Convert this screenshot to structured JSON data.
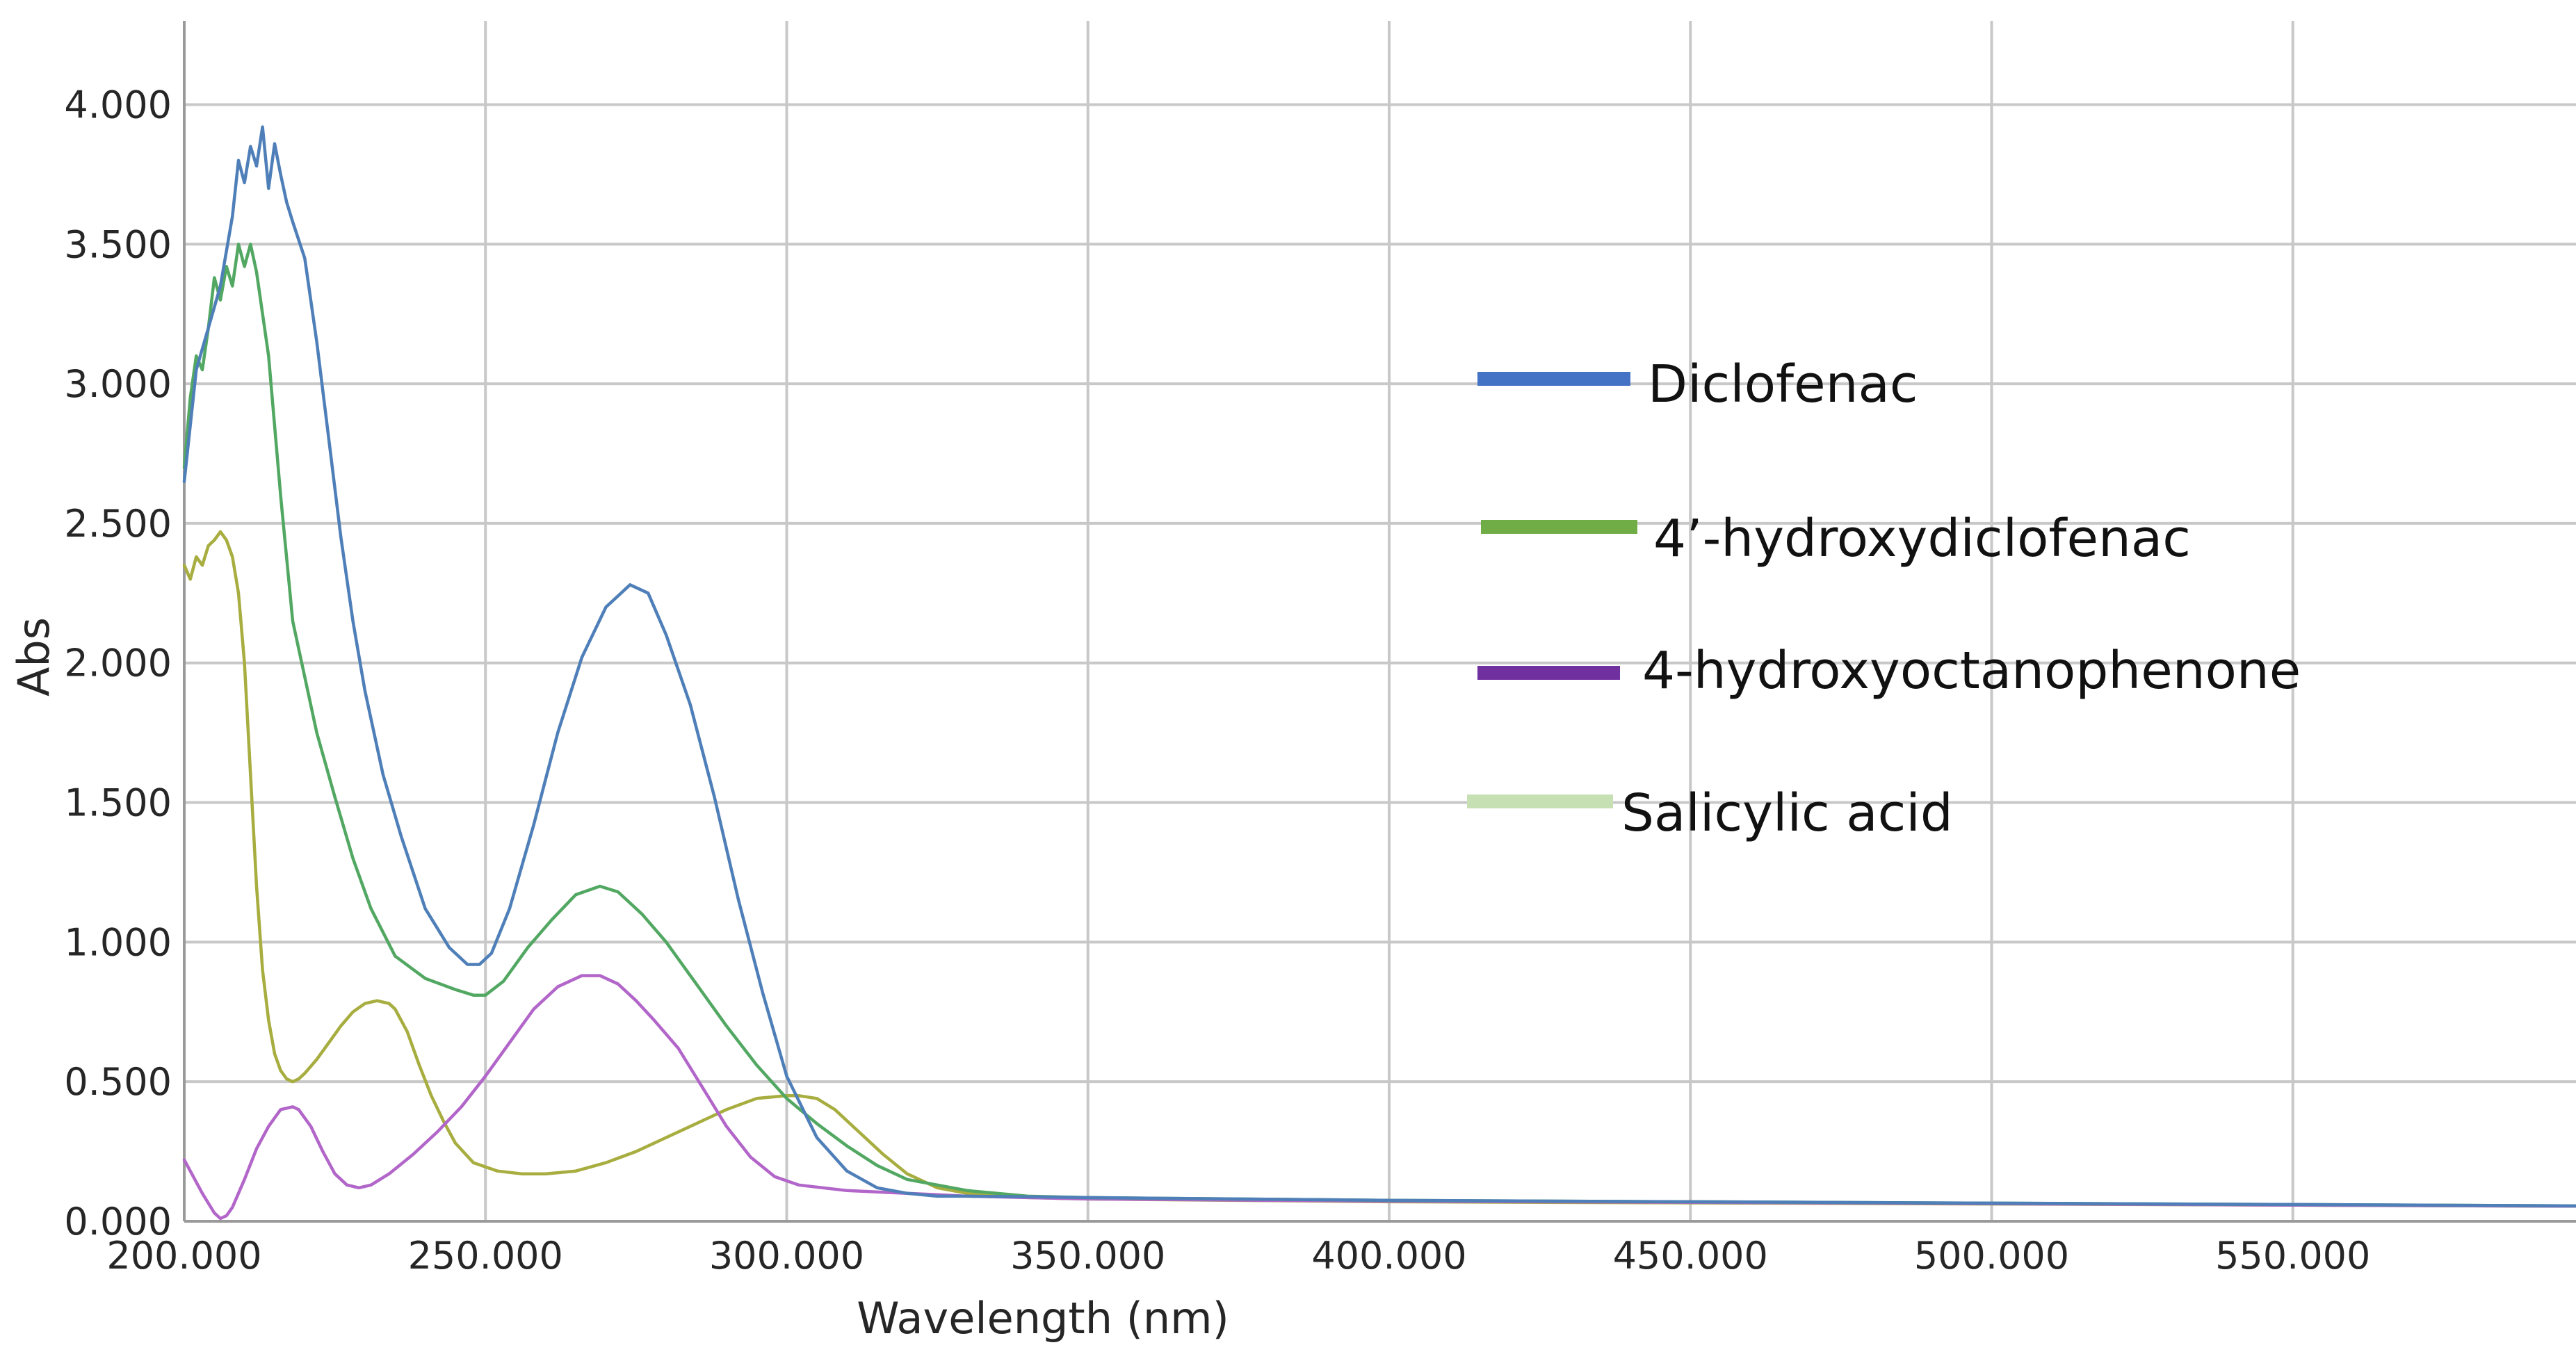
{
  "chart_data": {
    "type": "line",
    "title": "",
    "xlabel": "Wavelength (nm)",
    "ylabel": "Abs",
    "xlim": [
      200,
      597
    ],
    "ylim": [
      0,
      4.3
    ],
    "x_ticks": [
      200,
      250,
      300,
      350,
      400,
      450,
      500,
      550
    ],
    "x_tick_labels": [
      "200.000",
      "250.000",
      "300.000",
      "350.000",
      "400.000",
      "450.000",
      "500.000",
      "550.000"
    ],
    "y_ticks": [
      0,
      0.5,
      1,
      1.5,
      2,
      2.5,
      3,
      3.5,
      4
    ],
    "y_tick_labels": [
      "0.000",
      "0.500",
      "1.000",
      "1.500",
      "2.000",
      "2.500",
      "3.000",
      "3.500",
      "4.000"
    ],
    "grid": true,
    "legend_position": "right-center",
    "series": [
      {
        "name": "Diclofenac",
        "color": "#4f7fb8",
        "legend_color": "#4472c4",
        "x": [
          200,
          202,
          204,
          206,
          208,
          209,
          210,
          211,
          212,
          213,
          214,
          215,
          216,
          217,
          218,
          220,
          222,
          224,
          226,
          228,
          230,
          233,
          236,
          240,
          244,
          247,
          249,
          251,
          254,
          258,
          262,
          266,
          270,
          274,
          277,
          280,
          284,
          288,
          292,
          296,
          300,
          305,
          310,
          315,
          320,
          325,
          330,
          340,
          350,
          400,
          450,
          500,
          550,
          597
        ],
        "y": [
          2.65,
          3.05,
          3.2,
          3.35,
          3.6,
          3.8,
          3.72,
          3.85,
          3.78,
          3.92,
          3.7,
          3.86,
          3.75,
          3.65,
          3.58,
          3.45,
          3.15,
          2.8,
          2.45,
          2.15,
          1.9,
          1.6,
          1.38,
          1.12,
          0.98,
          0.92,
          0.92,
          0.96,
          1.12,
          1.42,
          1.75,
          2.02,
          2.2,
          2.28,
          2.25,
          2.1,
          1.85,
          1.52,
          1.15,
          0.82,
          0.52,
          0.3,
          0.18,
          0.12,
          0.1,
          0.09,
          0.09,
          0.088,
          0.085,
          0.075,
          0.07,
          0.065,
          0.06,
          0.055
        ]
      },
      {
        "name": "4’-hydroxydiclofenac",
        "color": "#52a862",
        "legend_color": "#70ad47",
        "x": [
          200,
          201,
          202,
          203,
          204,
          205,
          206,
          207,
          208,
          209,
          210,
          211,
          212,
          214,
          216,
          218,
          220,
          222,
          225,
          228,
          231,
          235,
          240,
          245,
          248,
          250,
          253,
          257,
          261,
          265,
          269,
          272,
          276,
          280,
          285,
          290,
          295,
          300,
          305,
          310,
          315,
          320,
          330,
          340,
          350,
          400,
          450,
          500,
          550,
          597
        ],
        "y": [
          2.7,
          2.95,
          3.1,
          3.05,
          3.2,
          3.38,
          3.3,
          3.42,
          3.35,
          3.5,
          3.42,
          3.5,
          3.4,
          3.1,
          2.6,
          2.15,
          1.95,
          1.75,
          1.52,
          1.3,
          1.12,
          0.95,
          0.87,
          0.83,
          0.81,
          0.81,
          0.86,
          0.98,
          1.08,
          1.17,
          1.2,
          1.18,
          1.1,
          1.0,
          0.85,
          0.7,
          0.56,
          0.44,
          0.35,
          0.27,
          0.2,
          0.15,
          0.11,
          0.09,
          0.085,
          0.075,
          0.07,
          0.065,
          0.06,
          0.055
        ]
      },
      {
        "name": "4-hydroxyoctanophenone",
        "color": "#b266c9",
        "legend_color": "#7030a0",
        "x": [
          200,
          201,
          203,
          205,
          206,
          207,
          208,
          210,
          212,
          214,
          216,
          218,
          219,
          221,
          223,
          225,
          227,
          229,
          231,
          234,
          238,
          242,
          246,
          250,
          254,
          258,
          262,
          266,
          269,
          272,
          275,
          278,
          282,
          286,
          290,
          294,
          298,
          302,
          306,
          310,
          320,
          330,
          340,
          350,
          400,
          450,
          500,
          550,
          597
        ],
        "y": [
          0.22,
          0.18,
          0.1,
          0.03,
          0.01,
          0.02,
          0.05,
          0.15,
          0.26,
          0.34,
          0.4,
          0.41,
          0.4,
          0.34,
          0.25,
          0.17,
          0.13,
          0.12,
          0.13,
          0.17,
          0.24,
          0.32,
          0.41,
          0.52,
          0.64,
          0.76,
          0.84,
          0.88,
          0.88,
          0.85,
          0.79,
          0.72,
          0.62,
          0.48,
          0.34,
          0.23,
          0.16,
          0.13,
          0.12,
          0.11,
          0.1,
          0.09,
          0.085,
          0.08,
          0.072,
          0.068,
          0.063,
          0.058,
          0.054
        ]
      },
      {
        "name": "Salicylic acid",
        "color": "#a7ad3f",
        "legend_color": "#c6e0b4",
        "x": [
          200,
          201,
          202,
          203,
          204,
          205,
          206,
          207,
          208,
          209,
          210,
          211,
          212,
          213,
          214,
          215,
          216,
          217,
          218,
          219,
          220,
          222,
          224,
          226,
          228,
          230,
          232,
          234,
          235,
          237,
          239,
          241,
          243,
          245,
          248,
          252,
          256,
          260,
          265,
          270,
          275,
          280,
          285,
          290,
          295,
          300,
          302,
          305,
          308,
          312,
          316,
          320,
          325,
          330,
          340,
          350,
          400,
          450,
          500,
          550,
          597
        ],
        "y": [
          2.35,
          2.3,
          2.38,
          2.35,
          2.42,
          2.44,
          2.47,
          2.44,
          2.38,
          2.25,
          2.0,
          1.6,
          1.2,
          0.9,
          0.72,
          0.6,
          0.54,
          0.51,
          0.5,
          0.51,
          0.53,
          0.58,
          0.64,
          0.7,
          0.75,
          0.78,
          0.79,
          0.78,
          0.76,
          0.68,
          0.56,
          0.45,
          0.36,
          0.28,
          0.21,
          0.18,
          0.17,
          0.17,
          0.18,
          0.21,
          0.25,
          0.3,
          0.35,
          0.4,
          0.44,
          0.45,
          0.45,
          0.44,
          0.4,
          0.32,
          0.24,
          0.17,
          0.12,
          0.1,
          0.085,
          0.08,
          0.07,
          0.066,
          0.062,
          0.058,
          0.054
        ]
      }
    ]
  }
}
